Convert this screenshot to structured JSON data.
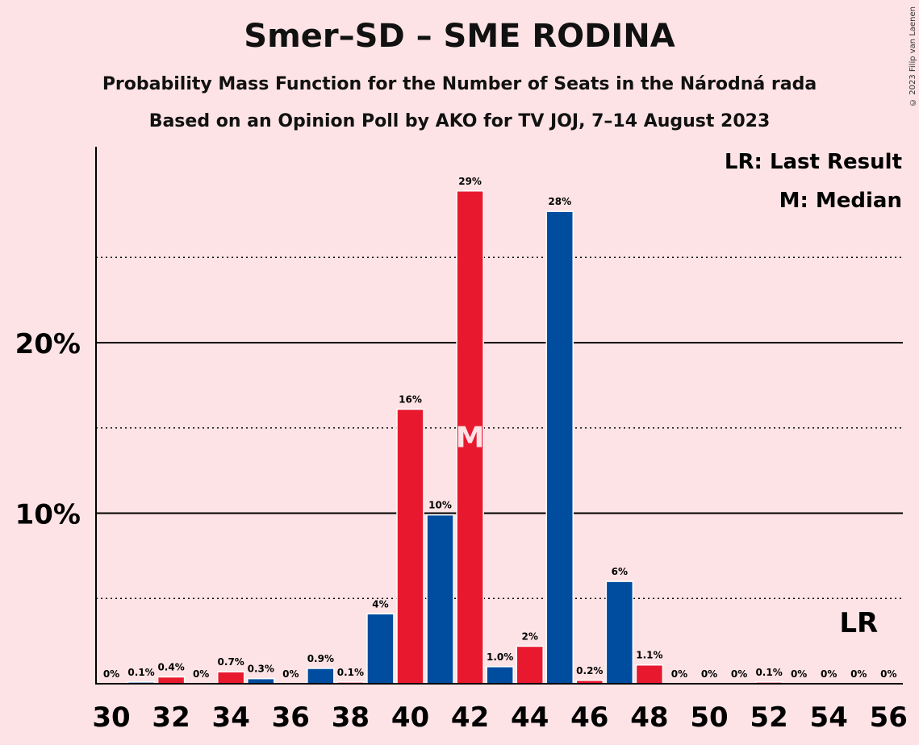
{
  "header": {
    "title": "Smer–SD – SME RODINA",
    "subtitle1": "Probability Mass Function for the Number of Seats in the Národná rada",
    "subtitle2": "Based on an Opinion Poll by AKO for TV JOJ, 7–14 August 2023",
    "copyright": "© 2023 Filip van Laenen"
  },
  "legend": {
    "lr": "LR: Last Result",
    "m": "M: Median"
  },
  "colors": {
    "background": "#FDE3E5",
    "red": "#E8192F",
    "blue": "#004C9E"
  },
  "chart_data": {
    "type": "bar",
    "title": "Smer–SD – SME RODINA",
    "xlabel": "",
    "ylabel": "",
    "ylim": [
      0,
      30
    ],
    "y_ticks": [
      {
        "value": 10,
        "label": "10%"
      },
      {
        "value": 20,
        "label": "20%"
      }
    ],
    "minor_gridlines": [
      5,
      15,
      25
    ],
    "x_tick_labels": [
      "30",
      "32",
      "34",
      "36",
      "38",
      "40",
      "42",
      "44",
      "46",
      "48",
      "50",
      "52",
      "54",
      "56"
    ],
    "last_result_seat": 55,
    "last_result_label": "LR",
    "median_seat": 42,
    "median_label": "M",
    "legend_position": "top-right",
    "series": [
      {
        "x": [
          30,
          31,
          32,
          33,
          34,
          35,
          36,
          37,
          38,
          39,
          40,
          41,
          42,
          43,
          44,
          45,
          46,
          47,
          48,
          49,
          50,
          51,
          52,
          53,
          54,
          55,
          56
        ],
        "values": [
          0,
          0.1,
          0.4,
          0,
          0.7,
          0.3,
          0,
          0.9,
          0.1,
          4,
          16,
          10,
          29,
          1.0,
          2,
          28,
          0.2,
          6,
          1.1,
          0,
          0,
          0,
          0.1,
          0,
          0,
          0,
          0
        ],
        "display_values": [
          0,
          0.1,
          0.4,
          0,
          0.7,
          0.3,
          0,
          0.9,
          0.1,
          4.1,
          16.1,
          9.9,
          28.9,
          1.0,
          2.2,
          27.7,
          0.2,
          6.0,
          1.1,
          0,
          0,
          0,
          0.1,
          0,
          0,
          0,
          0
        ],
        "labels": [
          "0%",
          "0.1%",
          "0.4%",
          "0%",
          "0.7%",
          "0.3%",
          "0%",
          "0.9%",
          "0.1%",
          "4%",
          "16%",
          "10%",
          "29%",
          "1.0%",
          "2%",
          "28%",
          "0.2%",
          "6%",
          "1.1%",
          "0%",
          "0%",
          "0%",
          "0.1%",
          "0%",
          "0%",
          "0%",
          "0%"
        ],
        "colors": [
          "blue",
          "blue",
          "red",
          "blue",
          "red",
          "blue",
          "red",
          "blue",
          "red",
          "blue",
          "red",
          "blue",
          "red",
          "blue",
          "red",
          "blue",
          "red",
          "blue",
          "red",
          "blue",
          "red",
          "blue",
          "red",
          "blue",
          "red",
          "blue",
          "red"
        ]
      }
    ]
  }
}
